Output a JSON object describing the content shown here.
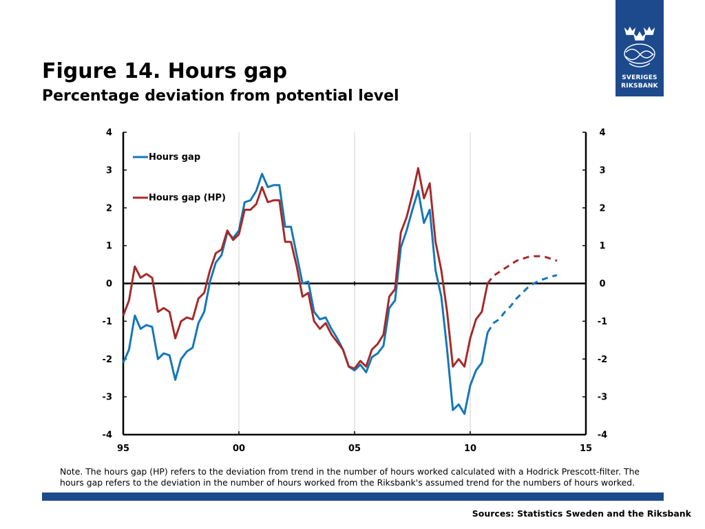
{
  "header": {
    "title": "Figure 14. Hours gap",
    "subtitle": "Percentage deviation from potential level"
  },
  "logo": {
    "line1": "SVERIGES",
    "line2": "RIKSBANK"
  },
  "note": "Note. The hours gap (HP) refers to the deviation from trend in the number of hours worked calculated with a Hodrick Prescott-filter. The hours gap refers to the deviation in the number of hours worked from the Riksbank's assumed trend for the numbers of hours worked.",
  "sources": "Sources: Statistics Sweden and the Riksbank",
  "colors": {
    "blue": "#1477b8",
    "red": "#a52a2a",
    "brand": "#1c4a8c"
  },
  "chart_data": {
    "type": "line",
    "xlim": [
      1995,
      2015
    ],
    "ylim": [
      -4,
      4
    ],
    "x_ticks": [
      {
        "value": 1995,
        "label": "95"
      },
      {
        "value": 2000,
        "label": "00"
      },
      {
        "value": 2005,
        "label": "05"
      },
      {
        "value": 2010,
        "label": "10"
      },
      {
        "value": 2015,
        "label": "15"
      }
    ],
    "y_ticks": [
      "4",
      "3",
      "2",
      "1",
      "0",
      "-1",
      "-2",
      "-3",
      "-4"
    ],
    "grid": "vertical",
    "legend_position": "top-left",
    "series": [
      {
        "name": "Hours gap",
        "color": "#1477b8",
        "outcome_x": [
          1995.0,
          1995.25,
          1995.5,
          1995.75,
          1996.0,
          1996.25,
          1996.5,
          1996.75,
          1997.0,
          1997.25,
          1997.5,
          1997.75,
          1998.0,
          1998.25,
          1998.5,
          1998.75,
          1999.0,
          1999.25,
          1999.5,
          1999.75,
          2000.0,
          2000.25,
          2000.5,
          2000.75,
          2001.0,
          2001.25,
          2001.5,
          2001.75,
          2002.0,
          2002.25,
          2002.5,
          2002.75,
          2003.0,
          2003.25,
          2003.5,
          2003.75,
          2004.0,
          2004.25,
          2004.5,
          2004.75,
          2005.0,
          2005.25,
          2005.5,
          2005.75,
          2006.0,
          2006.25,
          2006.5,
          2006.75,
          2007.0,
          2007.25,
          2007.5,
          2007.75,
          2008.0,
          2008.25,
          2008.5,
          2008.75,
          2009.0,
          2009.25,
          2009.5,
          2009.75,
          2010.0,
          2010.25,
          2010.5,
          2010.75
        ],
        "outcome_y": [
          -2.1,
          -1.75,
          -0.85,
          -1.2,
          -1.1,
          -1.15,
          -2.0,
          -1.85,
          -1.9,
          -2.55,
          -2.0,
          -1.8,
          -1.7,
          -1.05,
          -0.75,
          0.05,
          0.55,
          0.75,
          1.35,
          1.2,
          1.4,
          2.15,
          2.2,
          2.45,
          2.9,
          2.55,
          2.6,
          2.6,
          1.5,
          1.5,
          0.75,
          0.0,
          0.05,
          -0.75,
          -0.95,
          -0.9,
          -1.2,
          -1.45,
          -1.75,
          -2.2,
          -2.3,
          -2.15,
          -2.35,
          -1.95,
          -1.85,
          -1.65,
          -0.65,
          -0.45,
          0.95,
          1.4,
          1.95,
          2.45,
          1.6,
          1.95,
          0.35,
          -0.35,
          -1.75,
          -3.35,
          -3.2,
          -3.45,
          -2.7,
          -2.3,
          -2.1,
          -1.3
        ],
        "forecast_x": [
          2010.75,
          2011.0,
          2011.25,
          2011.5,
          2011.75,
          2012.0,
          2012.25,
          2012.5,
          2012.75,
          2013.0,
          2013.25,
          2013.5,
          2013.75
        ],
        "forecast_y": [
          -1.3,
          -1.05,
          -0.95,
          -0.75,
          -0.6,
          -0.4,
          -0.25,
          -0.1,
          0.0,
          0.08,
          0.13,
          0.18,
          0.22
        ]
      },
      {
        "name": "Hours gap (HP)",
        "color": "#a52a2a",
        "outcome_x": [
          1995.0,
          1995.25,
          1995.5,
          1995.75,
          1996.0,
          1996.25,
          1996.5,
          1996.75,
          1997.0,
          1997.25,
          1997.5,
          1997.75,
          1998.0,
          1998.25,
          1998.5,
          1998.75,
          1999.0,
          1999.25,
          1999.5,
          1999.75,
          2000.0,
          2000.25,
          2000.5,
          2000.75,
          2001.0,
          2001.25,
          2001.5,
          2001.75,
          2002.0,
          2002.25,
          2002.5,
          2002.75,
          2003.0,
          2003.25,
          2003.5,
          2003.75,
          2004.0,
          2004.25,
          2004.5,
          2004.75,
          2005.0,
          2005.25,
          2005.5,
          2005.75,
          2006.0,
          2006.25,
          2006.5,
          2006.75,
          2007.0,
          2007.25,
          2007.5,
          2007.75,
          2008.0,
          2008.25,
          2008.5,
          2008.75,
          2009.0,
          2009.25,
          2009.5,
          2009.75,
          2010.0,
          2010.25,
          2010.5,
          2010.75
        ],
        "outcome_y": [
          -0.85,
          -0.45,
          0.45,
          0.15,
          0.25,
          0.15,
          -0.75,
          -0.65,
          -0.75,
          -1.45,
          -1.0,
          -0.9,
          -0.95,
          -0.4,
          -0.25,
          0.35,
          0.8,
          0.9,
          1.4,
          1.15,
          1.3,
          1.95,
          1.95,
          2.1,
          2.55,
          2.15,
          2.2,
          2.2,
          1.1,
          1.1,
          0.45,
          -0.35,
          -0.25,
          -1.0,
          -1.2,
          -1.05,
          -1.35,
          -1.55,
          -1.75,
          -2.2,
          -2.25,
          -2.05,
          -2.2,
          -1.75,
          -1.6,
          -1.35,
          -0.35,
          -0.15,
          1.35,
          1.75,
          2.35,
          3.05,
          2.25,
          2.65,
          1.1,
          0.35,
          -0.75,
          -2.2,
          -2.0,
          -2.2,
          -1.45,
          -0.95,
          -0.75,
          0.0
        ],
        "forecast_x": [
          2010.75,
          2011.0,
          2011.25,
          2011.5,
          2011.75,
          2012.0,
          2012.25,
          2012.5,
          2012.75,
          2013.0,
          2013.25,
          2013.5,
          2013.75
        ],
        "forecast_y": [
          0.0,
          0.2,
          0.3,
          0.4,
          0.5,
          0.6,
          0.65,
          0.7,
          0.72,
          0.72,
          0.7,
          0.65,
          0.6
        ]
      }
    ]
  }
}
